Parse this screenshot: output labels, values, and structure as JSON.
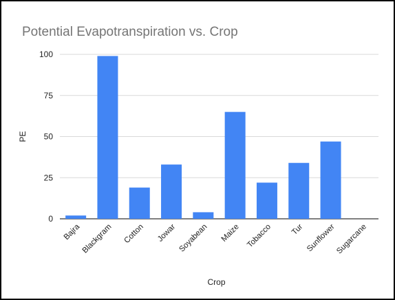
{
  "chart_data": {
    "type": "bar",
    "title": "Potential Evapotranspiration vs. Crop",
    "xlabel": "Crop",
    "ylabel": "PE",
    "categories": [
      "Bajra",
      "Blackgram",
      "Cotton",
      "Jowar",
      "Soyabean",
      "Maize",
      "Tobacco",
      "Tur",
      "Sunflower",
      "Sugarcane"
    ],
    "values": [
      2,
      99,
      19,
      33,
      4,
      65,
      22,
      34,
      47,
      0
    ],
    "ylim": [
      0,
      100
    ],
    "yticks": [
      0,
      25,
      50,
      75,
      100
    ],
    "grid": true,
    "legend": "none",
    "colors": {
      "bar": "#4285f4",
      "grid": "#d9d9d9",
      "text": "#222222",
      "title": "#757575"
    }
  }
}
